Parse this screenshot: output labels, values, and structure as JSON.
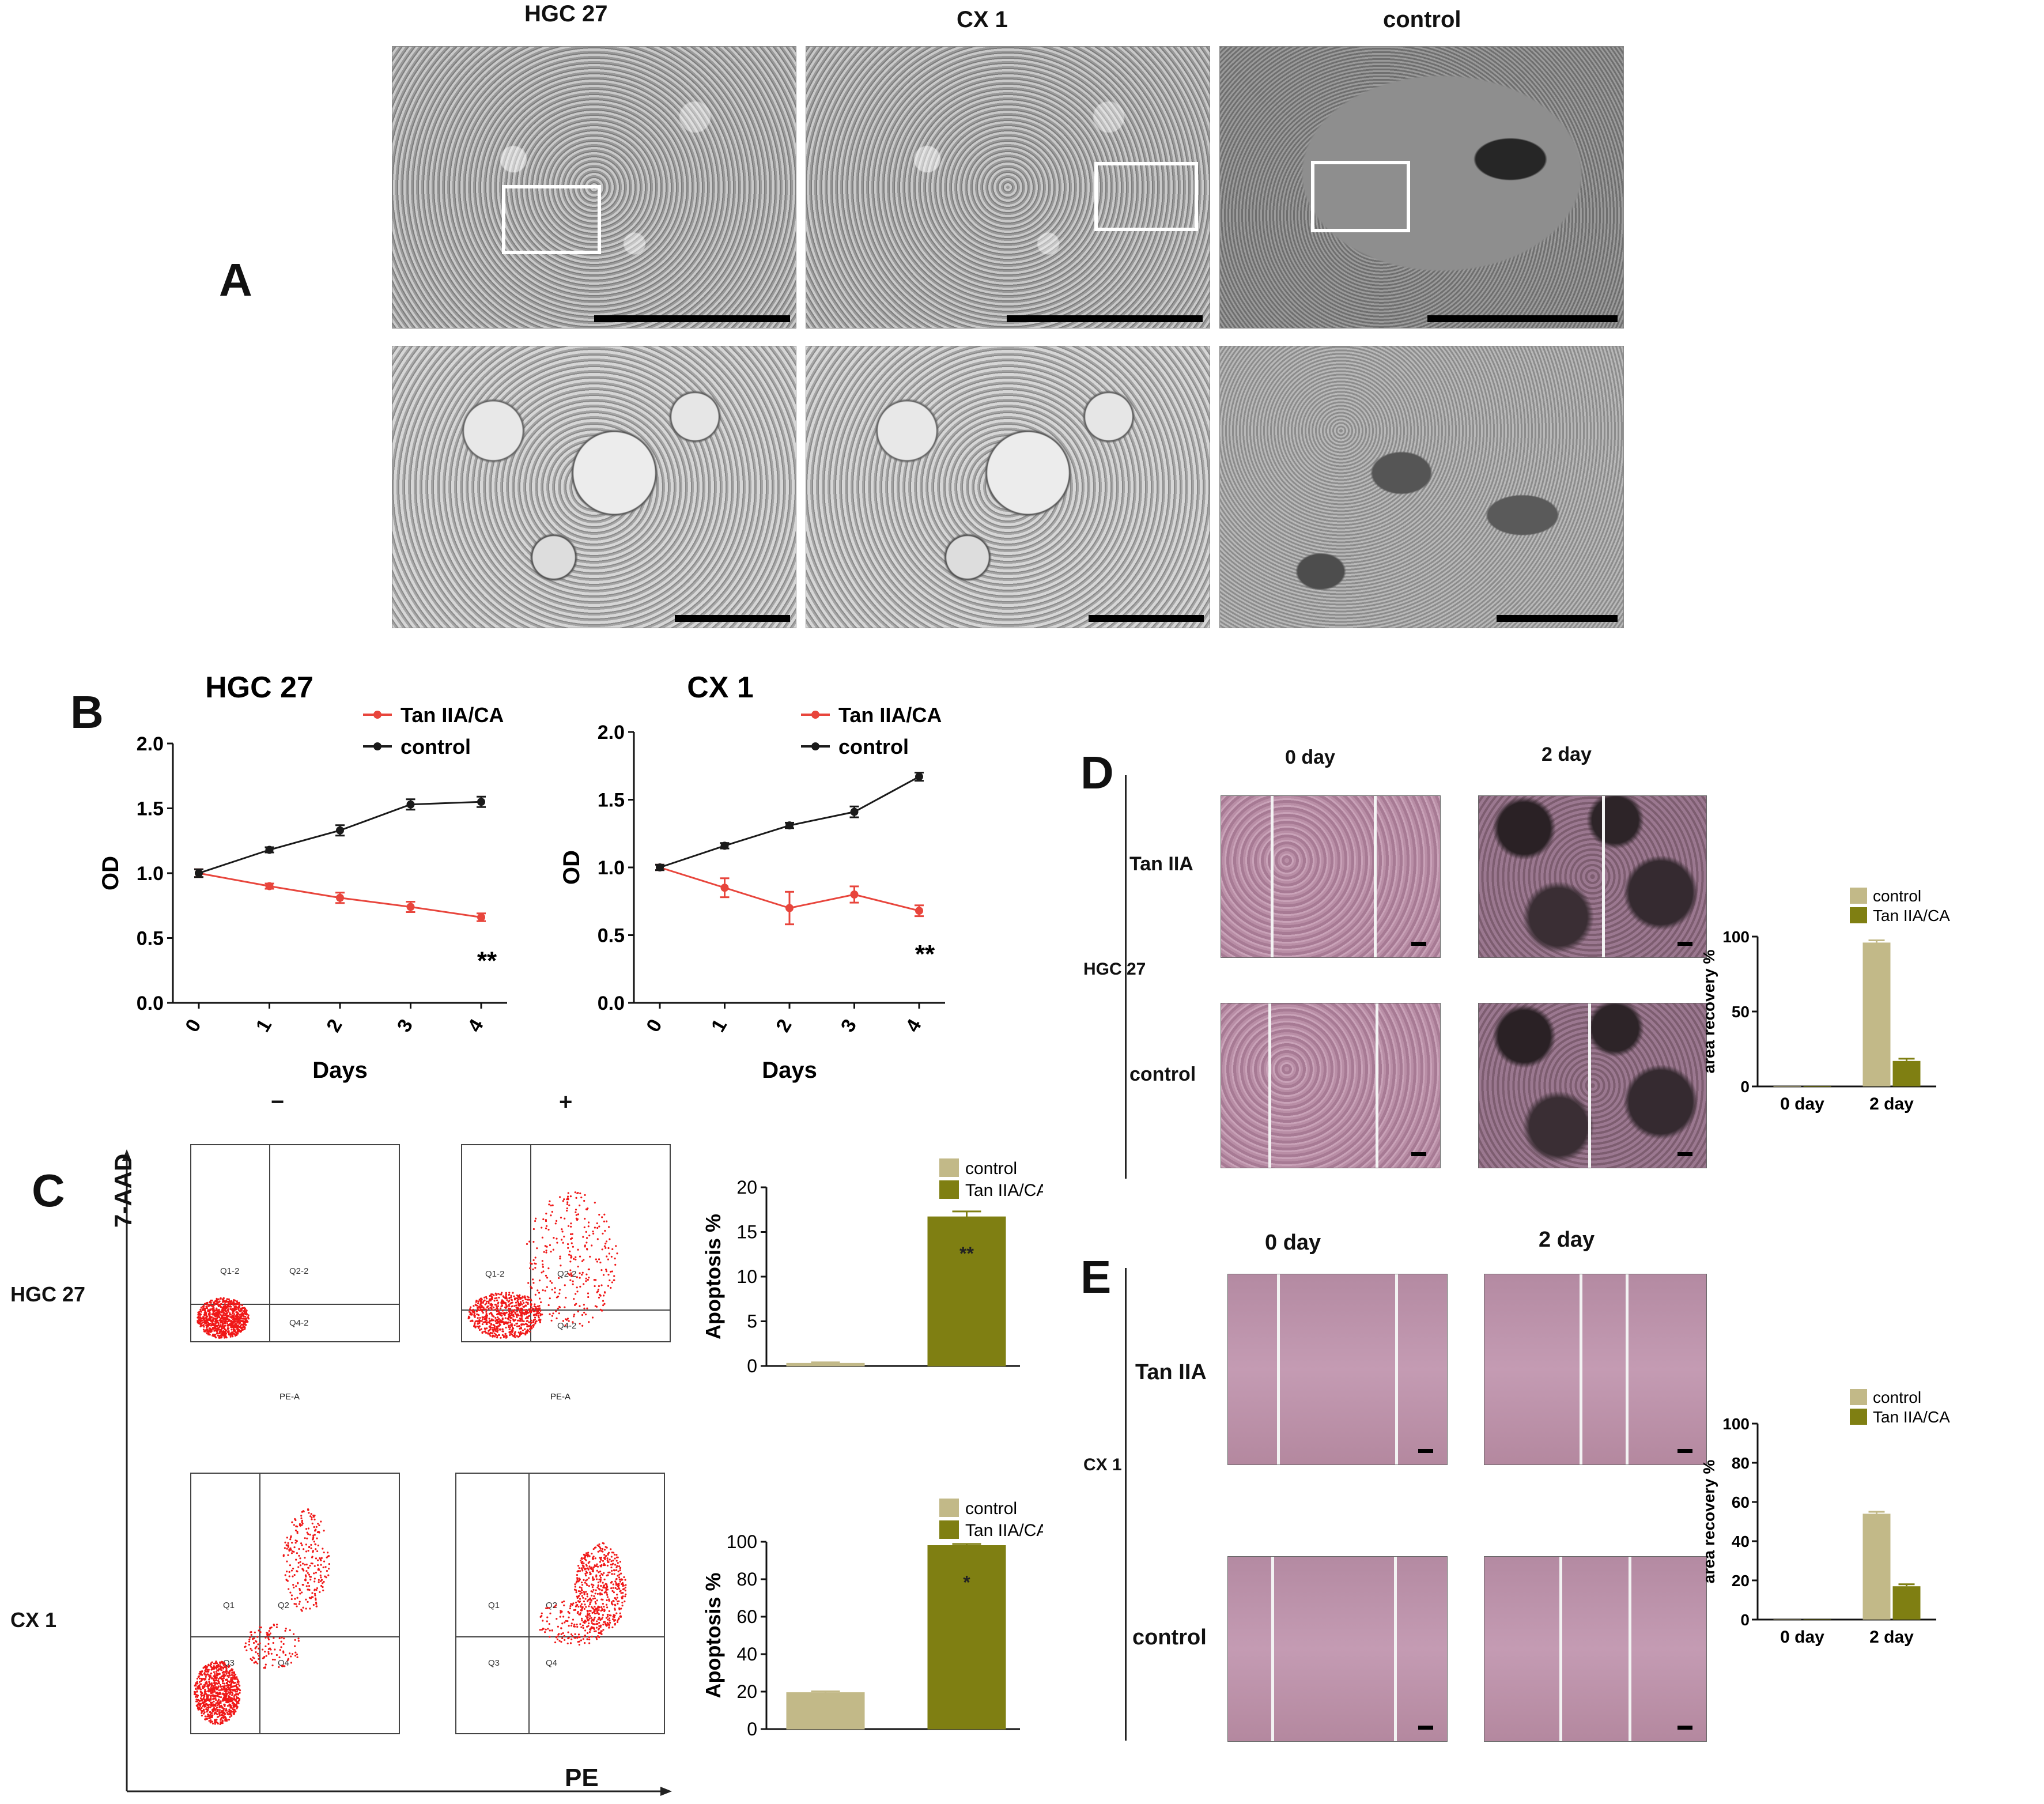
{
  "panel_letters": {
    "A": "A",
    "B": "B",
    "C": "C",
    "D": "D",
    "E": "E"
  },
  "panel_a": {
    "columns": [
      "HGC 27",
      "CX 1",
      "control"
    ]
  },
  "panel_c": {
    "condition_minus": "−",
    "condition_plus": "+",
    "row_labels": [
      "HGC 27",
      "CX 1"
    ],
    "y_axis_label": "7-AAD",
    "x_axis_label": "PE",
    "quadrants_hgc": [
      "Q1-2",
      "Q2-2",
      "Q3-2",
      "Q4-2"
    ],
    "quadrants_cx": [
      "Q1",
      "Q2",
      "Q3",
      "Q4"
    ],
    "pe_a": "PE-A"
  },
  "panel_d": {
    "row_label": "HGC 27",
    "columns": [
      "0 day",
      "2 day"
    ],
    "rows": [
      "Tan IIA",
      "control"
    ]
  },
  "panel_e": {
    "row_label": "CX 1",
    "columns": [
      "0 day",
      "2 day"
    ],
    "rows": [
      "Tan IIA",
      "control"
    ]
  },
  "colors": {
    "treatment_line": "#e8453c",
    "control_line": "#1a1a1a",
    "control_bar": "#c2b988",
    "treatment_bar": "#7f7f12"
  },
  "chart_data": [
    {
      "id": "B-HGC27",
      "type": "line",
      "title": "HGC 27",
      "xlabel": "Days",
      "ylabel": "OD",
      "x": [
        0,
        1,
        2,
        3,
        4
      ],
      "ylim": [
        0,
        2.0
      ],
      "yticks": [
        0.0,
        0.5,
        1.0,
        1.5,
        2.0
      ],
      "yticklabels": [
        "0.0",
        "0.5",
        "1.0",
        "1.5",
        "2.0"
      ],
      "legend_position": "top-right",
      "annotation": "**",
      "series": [
        {
          "name": "Tan IIA/CA",
          "values": [
            1.0,
            0.9,
            0.81,
            0.74,
            0.66
          ],
          "err": [
            0.03,
            0.02,
            0.04,
            0.04,
            0.03
          ],
          "color": "#e8453c"
        },
        {
          "name": "control",
          "values": [
            1.0,
            1.18,
            1.33,
            1.53,
            1.55
          ],
          "err": [
            0.03,
            0.02,
            0.04,
            0.04,
            0.04
          ],
          "color": "#1a1a1a"
        }
      ]
    },
    {
      "id": "B-CX1",
      "type": "line",
      "title": "CX 1",
      "xlabel": "Days",
      "ylabel": "OD",
      "x": [
        0,
        1,
        2,
        3,
        4
      ],
      "ylim": [
        0,
        2.0
      ],
      "yticks": [
        0.0,
        0.5,
        1.0,
        1.5,
        2.0
      ],
      "yticklabels": [
        "0.0",
        "0.5",
        "1.0",
        "1.5",
        "2.0"
      ],
      "legend_position": "top-right",
      "annotation": "**",
      "series": [
        {
          "name": "Tan IIA/CA",
          "values": [
            1.0,
            0.85,
            0.7,
            0.8,
            0.68
          ],
          "err": [
            0.02,
            0.07,
            0.12,
            0.06,
            0.04
          ],
          "color": "#e8453c"
        },
        {
          "name": "control",
          "values": [
            1.0,
            1.16,
            1.31,
            1.41,
            1.67
          ],
          "err": [
            0.02,
            0.02,
            0.02,
            0.04,
            0.03
          ],
          "color": "#1a1a1a"
        }
      ]
    },
    {
      "id": "C-HGC27",
      "type": "bar",
      "categories": [
        "control",
        "Tan IIA/CA"
      ],
      "values": [
        0.3,
        16.7
      ],
      "err": [
        0.1,
        0.6
      ],
      "ylabel": "Apoptosis %",
      "ylim": [
        0,
        20
      ],
      "yticks": [
        0,
        5,
        10,
        15,
        20
      ],
      "yticklabels": [
        "0",
        "5",
        "10",
        "15",
        "20"
      ],
      "annotation": "**",
      "legend": [
        "control",
        "Tan IIA/CA"
      ]
    },
    {
      "id": "C-CX1",
      "type": "bar",
      "categories": [
        "control",
        "Tan IIA/CA"
      ],
      "values": [
        19.5,
        98.0
      ],
      "err": [
        0.6,
        0.8
      ],
      "ylabel": "Apoptosis %",
      "ylim": [
        0,
        100
      ],
      "yticks": [
        0,
        20,
        40,
        60,
        80,
        100
      ],
      "yticklabels": [
        "0",
        "20",
        "40",
        "60",
        "80",
        "100"
      ],
      "annotation": "*",
      "legend": [
        "control",
        "Tan IIA/CA"
      ]
    },
    {
      "id": "D-HGC27",
      "type": "bar",
      "categories": [
        "0 day",
        "2 day"
      ],
      "series": [
        {
          "name": "control",
          "values": [
            0,
            96
          ],
          "err": [
            0,
            1.5
          ]
        },
        {
          "name": "Tan IIA/CA",
          "values": [
            0,
            17
          ],
          "err": [
            0,
            1.5
          ]
        }
      ],
      "ylabel": "area recovery %",
      "ylim": [
        0,
        100
      ],
      "yticks": [
        0,
        50,
        100
      ],
      "yticklabels": [
        "0",
        "50",
        "100"
      ]
    },
    {
      "id": "E-CX1",
      "type": "bar",
      "categories": [
        "0 day",
        "2 day"
      ],
      "series": [
        {
          "name": "control",
          "values": [
            0,
            54
          ],
          "err": [
            0,
            1
          ]
        },
        {
          "name": "Tan IIA/CA",
          "values": [
            0,
            17
          ],
          "err": [
            0,
            1
          ]
        }
      ],
      "ylabel": "area recovery %",
      "ylim": [
        0,
        100
      ],
      "yticks": [
        0,
        20,
        40,
        60,
        80,
        100
      ],
      "yticklabels": [
        "0",
        "20",
        "40",
        "60",
        "80",
        "100"
      ]
    }
  ]
}
